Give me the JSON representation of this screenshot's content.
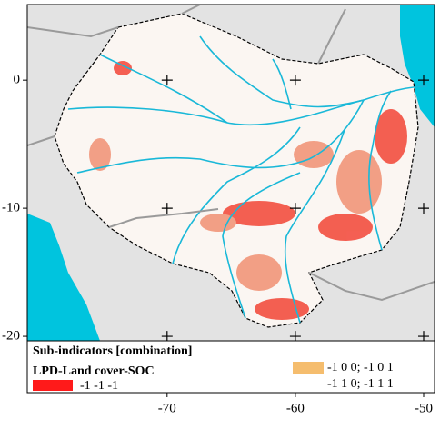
{
  "map": {
    "xlim": [
      -80.9,
      -49.15
    ],
    "ylim": [
      -20.35,
      5.9
    ],
    "xticks": [
      -70,
      -60,
      -50
    ],
    "yticks": [
      0,
      -10,
      -20
    ]
  },
  "legend": {
    "title": "Sub-indicators [combination]",
    "subtitle": "LPD-Land cover-SOC",
    "items": [
      {
        "label": "-1 -1 -1",
        "color": "#ff1a1a"
      },
      {
        "label": "-1 0 0; -1 0 1",
        "color": "#f5bd6e"
      },
      {
        "label": "-1 1 0; -1 1 1"
      }
    ]
  }
}
